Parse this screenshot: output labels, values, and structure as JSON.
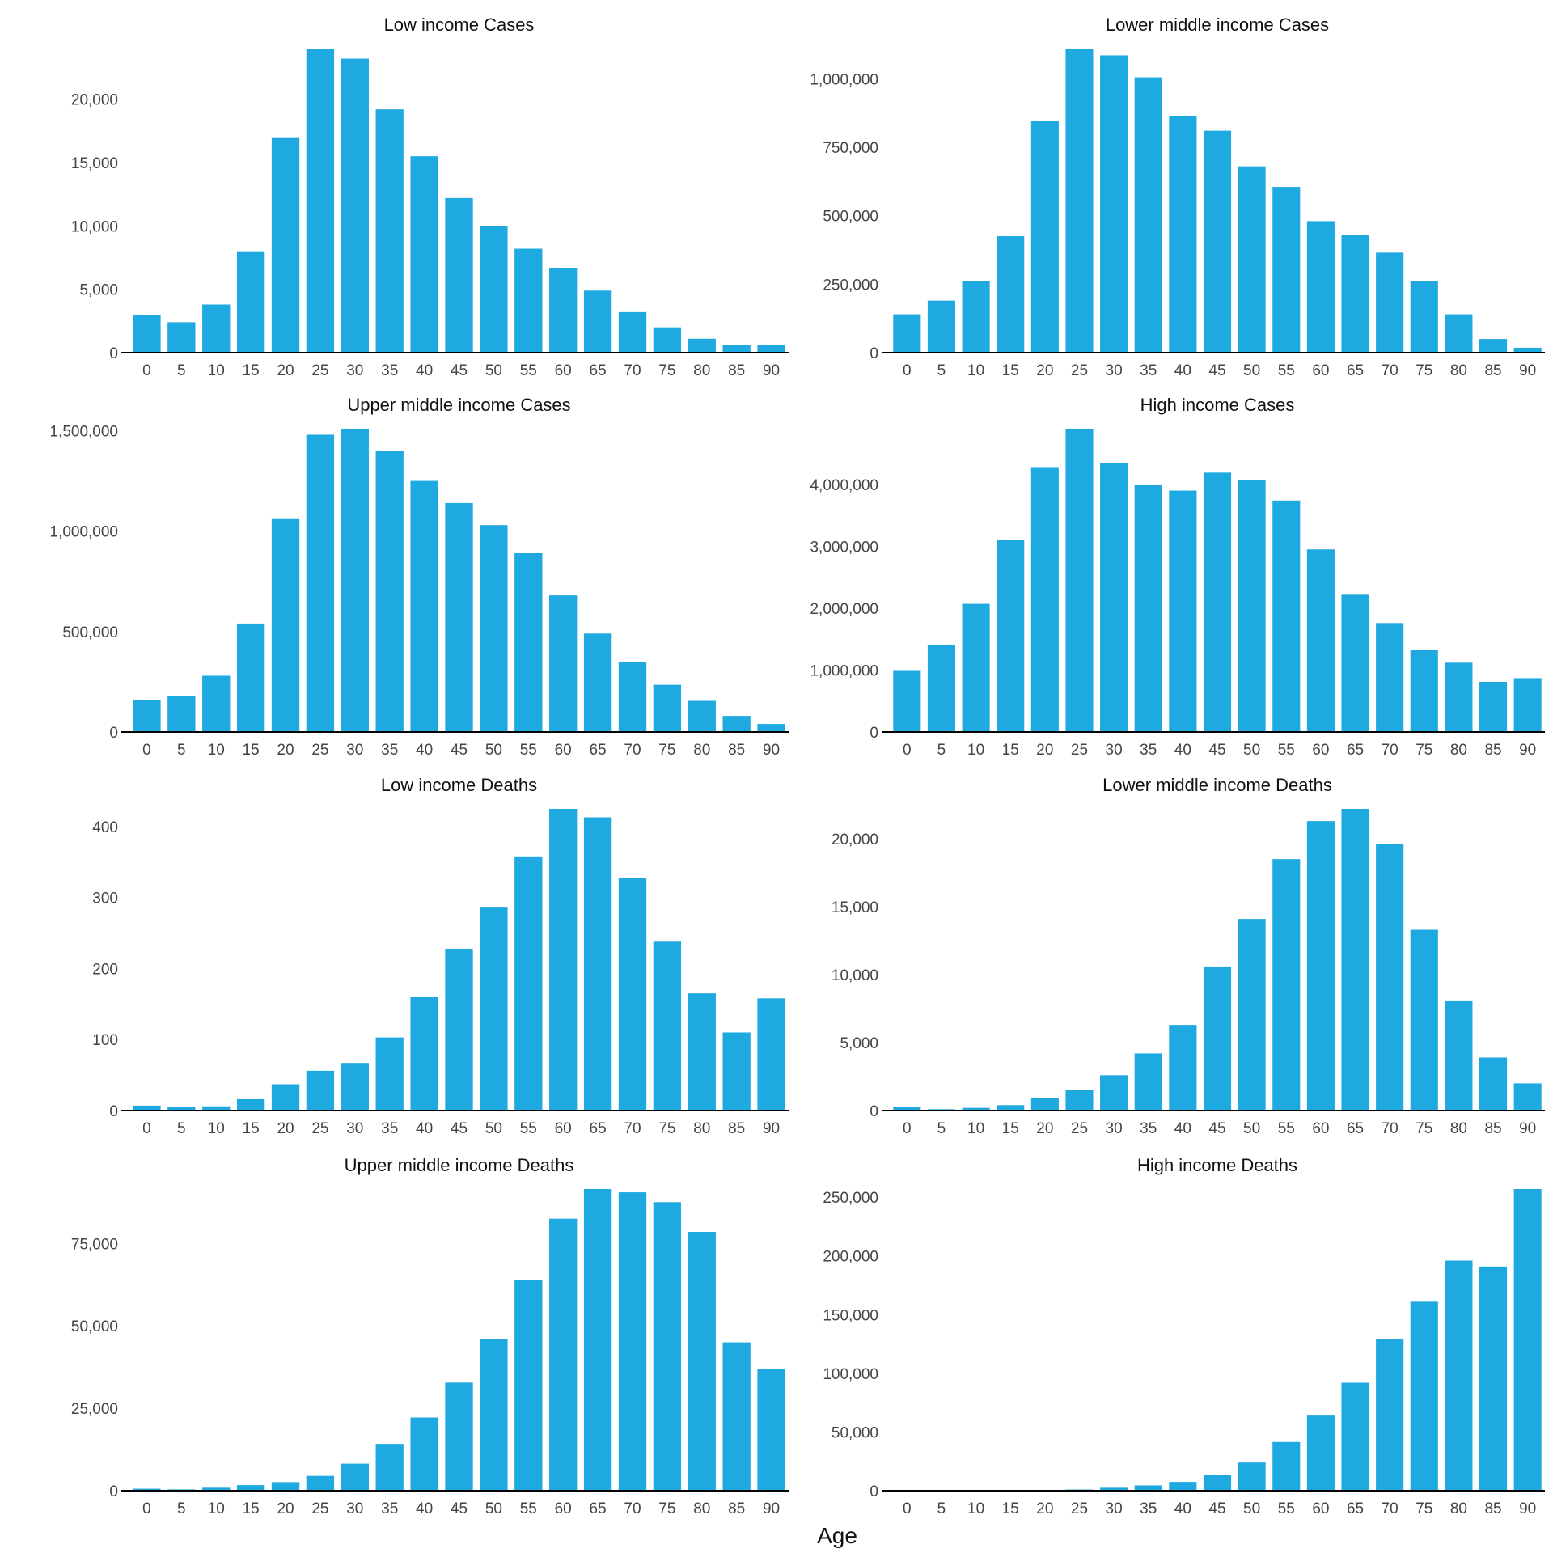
{
  "figure": {
    "xlabel": "Age",
    "bar_color": "#1EAAE1",
    "axis_color": "#000000"
  },
  "chart_data": [
    {
      "type": "bar",
      "title": "Low income Cases",
      "categories": [
        "0",
        "5",
        "10",
        "15",
        "20",
        "25",
        "30",
        "35",
        "40",
        "45",
        "50",
        "55",
        "60",
        "65",
        "70",
        "75",
        "80",
        "85",
        "90"
      ],
      "values": [
        3000,
        2400,
        3800,
        8000,
        17000,
        24000,
        23200,
        19200,
        15500,
        12200,
        10000,
        8200,
        6700,
        4900,
        3200,
        2000,
        1100,
        600,
        600
      ],
      "yticks": [
        0,
        5000,
        10000,
        15000,
        20000
      ],
      "ytick_labels": [
        "0",
        "5,000",
        "10,000",
        "15,000",
        "20,000"
      ],
      "ylim": [
        0,
        24000
      ]
    },
    {
      "type": "bar",
      "title": "Lower middle income Cases",
      "categories": [
        "0",
        "5",
        "10",
        "15",
        "20",
        "25",
        "30",
        "35",
        "40",
        "45",
        "50",
        "55",
        "60",
        "65",
        "70",
        "75",
        "80",
        "85",
        "90"
      ],
      "values": [
        140000,
        190000,
        260000,
        425000,
        845000,
        1110000,
        1085000,
        1005000,
        865000,
        810000,
        680000,
        605000,
        480000,
        430000,
        365000,
        260000,
        140000,
        50000,
        18000
      ],
      "yticks": [
        0,
        250000,
        500000,
        750000,
        1000000
      ],
      "ytick_labels": [
        "0",
        "250,000",
        "500,000",
        "750,000",
        "1,000,000"
      ],
      "ylim": [
        0,
        1110000
      ]
    },
    {
      "type": "bar",
      "title": "Upper middle income Cases",
      "categories": [
        "0",
        "5",
        "10",
        "15",
        "20",
        "25",
        "30",
        "35",
        "40",
        "45",
        "50",
        "55",
        "60",
        "65",
        "70",
        "75",
        "80",
        "85",
        "90"
      ],
      "values": [
        160000,
        180000,
        280000,
        540000,
        1060000,
        1480000,
        1510000,
        1400000,
        1250000,
        1140000,
        1030000,
        890000,
        680000,
        490000,
        350000,
        235000,
        155000,
        80000,
        40000
      ],
      "yticks": [
        0,
        500000,
        1000000,
        1500000
      ],
      "ytick_labels": [
        "0",
        "500,000",
        "1,000,000",
        "1,500,000"
      ],
      "ylim": [
        0,
        1510000
      ]
    },
    {
      "type": "bar",
      "title": "High income Cases",
      "categories": [
        "0",
        "5",
        "10",
        "15",
        "20",
        "25",
        "30",
        "35",
        "40",
        "45",
        "50",
        "55",
        "60",
        "65",
        "70",
        "75",
        "80",
        "85",
        "90"
      ],
      "values": [
        1000000,
        1400000,
        2070000,
        3100000,
        4280000,
        4900000,
        4350000,
        3990000,
        3900000,
        4190000,
        4070000,
        3740000,
        2950000,
        2230000,
        1760000,
        1330000,
        1120000,
        810000,
        870000
      ],
      "yticks": [
        0,
        1000000,
        2000000,
        3000000,
        4000000
      ],
      "ytick_labels": [
        "0",
        "1,000,000",
        "2,000,000",
        "3,000,000",
        "4,000,000"
      ],
      "ylim": [
        0,
        4900000
      ]
    },
    {
      "type": "bar",
      "title": "Low income Deaths",
      "categories": [
        "0",
        "5",
        "10",
        "15",
        "20",
        "25",
        "30",
        "35",
        "40",
        "45",
        "50",
        "55",
        "60",
        "65",
        "70",
        "75",
        "80",
        "85",
        "90"
      ],
      "values": [
        7,
        5,
        6,
        16,
        37,
        56,
        67,
        103,
        160,
        228,
        287,
        358,
        425,
        413,
        328,
        239,
        165,
        110,
        158
      ],
      "yticks": [
        0,
        100,
        200,
        300,
        400
      ],
      "ytick_labels": [
        "0",
        "100",
        "200",
        "300",
        "400"
      ],
      "ylim": [
        0,
        425
      ]
    },
    {
      "type": "bar",
      "title": "Lower middle income Deaths",
      "categories": [
        "0",
        "5",
        "10",
        "15",
        "20",
        "25",
        "30",
        "35",
        "40",
        "45",
        "50",
        "55",
        "60",
        "65",
        "70",
        "75",
        "80",
        "85",
        "90"
      ],
      "values": [
        250,
        100,
        200,
        400,
        900,
        1500,
        2600,
        4200,
        6300,
        10600,
        14100,
        18500,
        21300,
        22200,
        19600,
        13300,
        8100,
        3900,
        2000
      ],
      "yticks": [
        0,
        5000,
        10000,
        15000,
        20000
      ],
      "ytick_labels": [
        "0",
        "5,000",
        "10,000",
        "15,000",
        "20,000"
      ],
      "ylim": [
        0,
        22200
      ]
    },
    {
      "type": "bar",
      "title": "Upper middle income Deaths",
      "categories": [
        "0",
        "5",
        "10",
        "15",
        "20",
        "25",
        "30",
        "35",
        "40",
        "45",
        "50",
        "55",
        "60",
        "65",
        "70",
        "75",
        "80",
        "85",
        "90"
      ],
      "values": [
        600,
        400,
        900,
        1700,
        2600,
        4500,
        8200,
        14200,
        22200,
        32800,
        46000,
        64000,
        82500,
        91500,
        90500,
        87500,
        78500,
        45000,
        36800
      ],
      "yticks": [
        0,
        25000,
        50000,
        75000
      ],
      "ytick_labels": [
        "0",
        "25,000",
        "50,000",
        "75,000"
      ],
      "ylim": [
        0,
        91500
      ]
    },
    {
      "type": "bar",
      "title": "High income Deaths",
      "categories": [
        "0",
        "5",
        "10",
        "15",
        "20",
        "25",
        "30",
        "35",
        "40",
        "45",
        "50",
        "55",
        "60",
        "65",
        "70",
        "75",
        "80",
        "85",
        "90"
      ],
      "values": [
        200,
        100,
        200,
        300,
        500,
        1000,
        2500,
        4500,
        7500,
        13500,
        24000,
        41500,
        64000,
        92000,
        129000,
        161000,
        196000,
        191000,
        257000
      ],
      "yticks": [
        0,
        50000,
        100000,
        150000,
        200000,
        250000
      ],
      "ytick_labels": [
        "0",
        "50,000",
        "100,000",
        "150,000",
        "200,000",
        "250,000"
      ],
      "ylim": [
        0,
        257000
      ]
    }
  ]
}
